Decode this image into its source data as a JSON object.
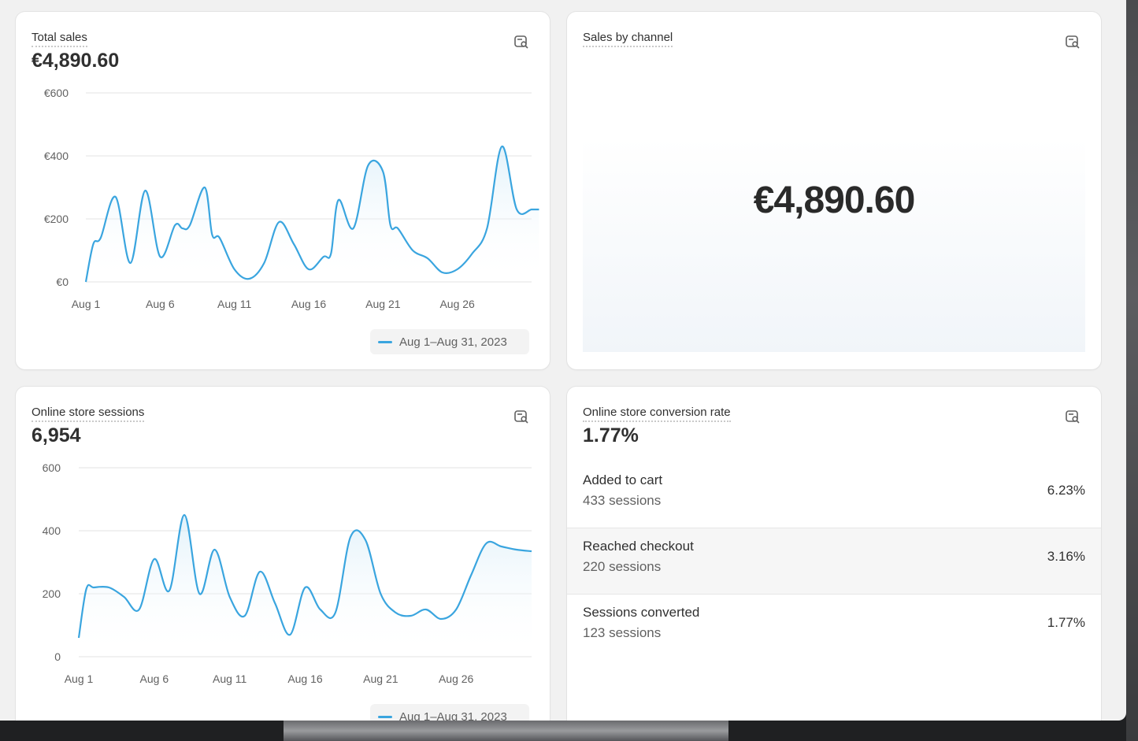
{
  "cards": {
    "total_sales": {
      "title": "Total sales",
      "value": "€4,890.60",
      "legend": "Aug 1–Aug 31, 2023"
    },
    "sales_by_channel": {
      "title": "Sales by channel",
      "value": "€4,890.60"
    },
    "sessions": {
      "title": "Online store sessions",
      "value": "6,954",
      "legend": "Aug 1–Aug 31, 2023"
    },
    "conversion": {
      "title": "Online store conversion rate",
      "value": "1.77%",
      "rows": [
        {
          "label": "Added to cart",
          "sub": "433 sessions",
          "pct": "6.23%"
        },
        {
          "label": "Reached checkout",
          "sub": "220 sessions",
          "pct": "3.16%"
        },
        {
          "label": "Sessions converted",
          "sub": "123 sessions",
          "pct": "1.77%"
        }
      ]
    }
  },
  "chart_data": [
    {
      "type": "area",
      "title": "Total sales",
      "x_tick_labels": [
        "Aug 1",
        "Aug 6",
        "Aug 11",
        "Aug 16",
        "Aug 21",
        "Aug 26"
      ],
      "y_tick_labels": [
        "€600",
        "€400",
        "€200",
        "€0"
      ],
      "ylim": [
        0,
        600
      ],
      "series": [
        {
          "name": "Aug 1–Aug 31, 2023",
          "color": "#3aa5df",
          "x": [
            1,
            1.5,
            2,
            3,
            4,
            5,
            6,
            7,
            7.5,
            8,
            9,
            9.5,
            10,
            11,
            12,
            13,
            14,
            15,
            16,
            17,
            17.5,
            18,
            19,
            20,
            21,
            21.5,
            22,
            23,
            24,
            25,
            26,
            27,
            28,
            29,
            30,
            31,
            31.5
          ],
          "values": [
            0,
            120,
            140,
            270,
            60,
            290,
            80,
            180,
            170,
            180,
            300,
            150,
            140,
            40,
            10,
            60,
            190,
            120,
            40,
            80,
            90,
            260,
            170,
            370,
            350,
            180,
            170,
            100,
            75,
            30,
            40,
            90,
            170,
            430,
            230,
            230,
            230
          ]
        }
      ]
    },
    {
      "type": "area",
      "title": "Online store sessions",
      "x_tick_labels": [
        "Aug 1",
        "Aug 6",
        "Aug 11",
        "Aug 16",
        "Aug 21",
        "Aug 26"
      ],
      "y_tick_labels": [
        "600",
        "400",
        "200",
        "0"
      ],
      "ylim": [
        0,
        600
      ],
      "series": [
        {
          "name": "Aug 1–Aug 31, 2023",
          "color": "#3aa5df",
          "x": [
            1,
            1.5,
            2,
            3,
            4,
            5,
            6,
            7,
            8,
            9,
            10,
            11,
            12,
            13,
            14,
            15,
            16,
            17,
            18,
            19,
            20,
            21,
            22,
            23,
            24,
            25,
            26,
            27,
            28,
            29,
            30,
            31
          ],
          "values": [
            60,
            215,
            220,
            220,
            190,
            150,
            310,
            210,
            450,
            200,
            340,
            190,
            130,
            270,
            170,
            70,
            220,
            150,
            140,
            380,
            370,
            200,
            140,
            130,
            150,
            120,
            150,
            260,
            360,
            350,
            340,
            335
          ]
        }
      ]
    }
  ],
  "colors": {
    "accent": "#3aa5df",
    "card_bg": "#ffffff",
    "page_bg": "#f1f1f1"
  }
}
